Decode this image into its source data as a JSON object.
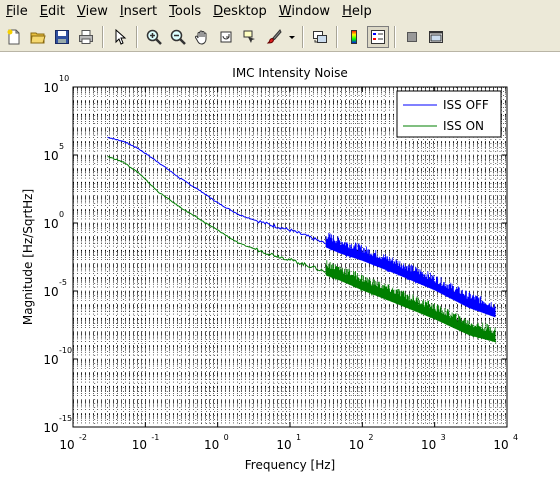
{
  "menubar": {
    "items": [
      {
        "label": "File",
        "key": "F"
      },
      {
        "label": "Edit",
        "key": "E"
      },
      {
        "label": "View",
        "key": "V"
      },
      {
        "label": "Insert",
        "key": "I"
      },
      {
        "label": "Tools",
        "key": "T"
      },
      {
        "label": "Desktop",
        "key": "D"
      },
      {
        "label": "Window",
        "key": "W"
      },
      {
        "label": "Help",
        "key": "H"
      }
    ]
  },
  "toolbar": {
    "icons": [
      "new-figure-icon",
      "open-file-icon",
      "save-icon",
      "print-icon",
      "pointer-icon",
      "zoom-in-icon",
      "zoom-out-icon",
      "pan-hand-icon",
      "rotate-3d-icon",
      "data-cursor-icon",
      "brush-icon",
      "brush-dropdown-icon",
      "link-plot-icon",
      "colorbar-icon",
      "legend-icon",
      "hide-plot-tools-icon",
      "show-plot-tools-icon"
    ]
  },
  "chart_data": {
    "type": "line",
    "title": "IMC Intensity Noise",
    "xlabel": "Frequency [Hz]",
    "ylabel": "Magnitude [Hz/SqrtHz]",
    "xscale": "log",
    "yscale": "log",
    "xlim": [
      0.01,
      10000
    ],
    "ylim": [
      1e-15,
      10000000000.0
    ],
    "x_ticks": [
      {
        "base": "10",
        "exp": "-2"
      },
      {
        "base": "10",
        "exp": "-1"
      },
      {
        "base": "10",
        "exp": "0"
      },
      {
        "base": "10",
        "exp": "1"
      },
      {
        "base": "10",
        "exp": "2"
      },
      {
        "base": "10",
        "exp": "3"
      },
      {
        "base": "10",
        "exp": "4"
      }
    ],
    "y_ticks": [
      {
        "base": "10",
        "exp": "10"
      },
      {
        "base": "10",
        "exp": "5"
      },
      {
        "base": "10",
        "exp": "0"
      },
      {
        "base": "10",
        "exp": "-5"
      },
      {
        "base": "10",
        "exp": "-10"
      },
      {
        "base": "10",
        "exp": "-15"
      }
    ],
    "grid": true,
    "legend_position": "top-right",
    "series": [
      {
        "name": "ISS OFF",
        "color": "#0000ff",
        "x": [
          0.03,
          0.05,
          0.08,
          0.15,
          0.3,
          0.6,
          1.0,
          2,
          5,
          10,
          20,
          50,
          100,
          300,
          1000,
          3000,
          7000
        ],
        "y": [
          2000000.0,
          1000000.0,
          300000.0,
          30000.0,
          2000.0,
          200,
          30,
          4,
          0.8,
          0.3,
          0.08,
          0.01,
          0.003,
          0.0003,
          2e-05,
          1e-06,
          2e-07
        ]
      },
      {
        "name": "ISS ON",
        "color": "#007f00",
        "x": [
          0.03,
          0.05,
          0.08,
          0.15,
          0.3,
          0.6,
          1.0,
          2,
          5,
          10,
          20,
          50,
          100,
          300,
          1000,
          3000,
          7000
        ],
        "y": [
          80000.0,
          30000.0,
          5000.0,
          200,
          15,
          1.5,
          0.3,
          0.03,
          0.006,
          0.002,
          0.0006,
          0.0001,
          2e-05,
          2e-06,
          1.5e-07,
          1e-08,
          3e-09
        ]
      }
    ]
  }
}
